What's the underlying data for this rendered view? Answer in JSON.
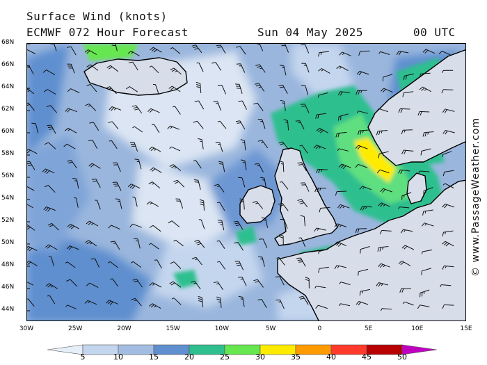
{
  "header": {
    "title": "Surface Wind (knots)",
    "model": "ECMWF 072 Hour Forecast",
    "date": "Sun 04 May 2025",
    "time": "00 UTC"
  },
  "watermark": "© www.PassageWeather.com",
  "axes": {
    "lat_labels": [
      "68N",
      "66N",
      "64N",
      "62N",
      "60N",
      "58N",
      "56N",
      "54N",
      "52N",
      "50N",
      "48N",
      "46N",
      "44N"
    ],
    "lon_labels": [
      "30W",
      "25W",
      "20W",
      "15W",
      "10W",
      "5W",
      "0",
      "5E",
      "10E",
      "15E"
    ]
  },
  "legend": {
    "labels": [
      "5",
      "10",
      "15",
      "20",
      "25",
      "30",
      "35",
      "40",
      "45",
      "50"
    ],
    "colors": [
      "#e6eef8",
      "#c4d6ee",
      "#a3bde2",
      "#5f8fcf",
      "#2fbf8f",
      "#66e64f",
      "#ffeb00",
      "#ff9a00",
      "#ff3a2a",
      "#b80000",
      "#c000c0"
    ]
  },
  "colors": {
    "land": "#d7deea",
    "ocean_base": "#9ab6dd",
    "coast": "#000000"
  }
}
